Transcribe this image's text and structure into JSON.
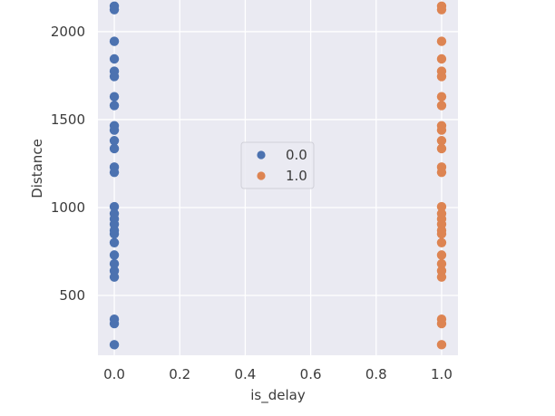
{
  "chart_data": {
    "type": "scatter",
    "xlabel": "is_delay",
    "ylabel": "Distance",
    "xlim": [
      -0.05,
      1.05
    ],
    "ylim": [
      160,
      2180
    ],
    "x_ticks": [
      0.0,
      0.2,
      0.4,
      0.6,
      0.8,
      1.0
    ],
    "x_tick_labels": [
      "0.0",
      "0.2",
      "0.4",
      "0.6",
      "0.8",
      "1.0"
    ],
    "y_ticks": [
      500,
      1000,
      1500,
      2000
    ],
    "y_tick_labels": [
      "500",
      "1000",
      "1500",
      "2000"
    ],
    "grid": true,
    "legend_placement": "center",
    "series": [
      {
        "name": "0.0",
        "color": "#4c72b0",
        "x": 0.0,
        "y": [
          2145,
          2125,
          1945,
          1845,
          1775,
          1745,
          1630,
          1580,
          1465,
          1440,
          1380,
          1335,
          1230,
          1200,
          1005,
          965,
          935,
          905,
          870,
          850,
          800,
          730,
          680,
          640,
          605,
          365,
          340,
          220
        ]
      },
      {
        "name": "1.0",
        "color": "#dd8452",
        "x": 1.0,
        "y": [
          2145,
          2125,
          1945,
          1845,
          1775,
          1745,
          1630,
          1580,
          1465,
          1440,
          1380,
          1335,
          1230,
          1200,
          1005,
          965,
          935,
          905,
          870,
          850,
          800,
          730,
          680,
          640,
          605,
          365,
          340,
          220
        ]
      }
    ]
  }
}
